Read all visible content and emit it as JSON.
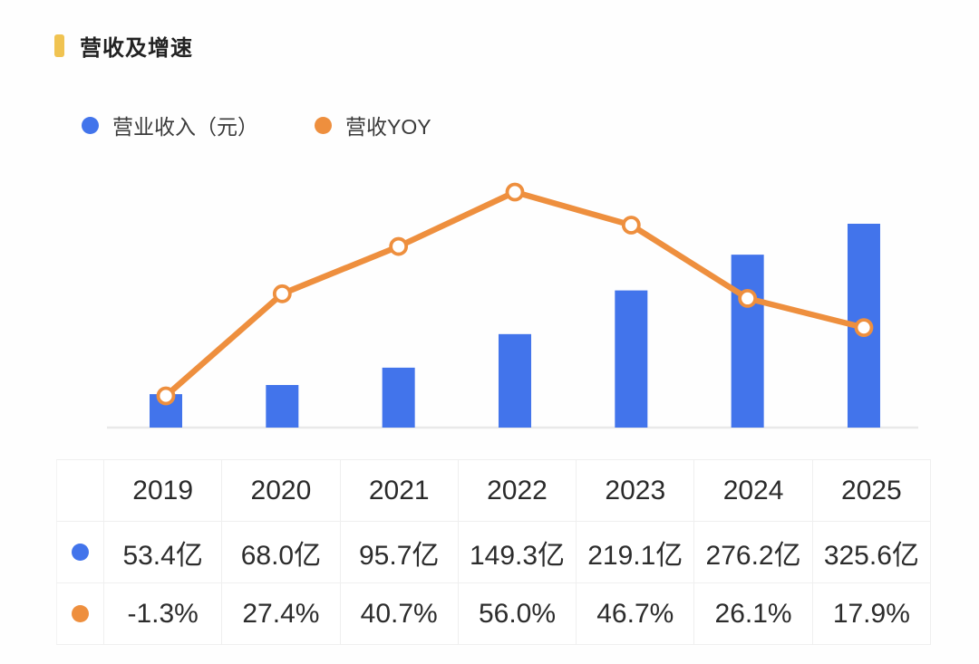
{
  "header": {
    "title": "营收及增速"
  },
  "legend": {
    "revenue_label": "营业收入（元）",
    "yoy_label": "营收YOY"
  },
  "chart_data": {
    "type": "combo",
    "categories": [
      "2019",
      "2020",
      "2021",
      "2022",
      "2023",
      "2024",
      "2025"
    ],
    "series": [
      {
        "name": "营业收入（元）",
        "type": "bar",
        "unit": "亿",
        "color": "#4274EB",
        "values": [
          53.4,
          68.0,
          95.7,
          149.3,
          219.1,
          276.2,
          325.6
        ]
      },
      {
        "name": "营收YOY",
        "type": "line",
        "unit": "%",
        "color": "#EE8F3E",
        "values": [
          -1.3,
          27.4,
          40.7,
          56.0,
          46.7,
          26.1,
          17.9
        ]
      }
    ],
    "title": "营收及增速",
    "xlabel": "",
    "ylabel": "",
    "legend_position": "top-left",
    "grid": false,
    "axes_visible": false,
    "bar_axis_range": [
      0,
      325.6
    ],
    "line_axis_range": [
      -1.3,
      56.0
    ]
  },
  "table": {
    "years": [
      "2019",
      "2020",
      "2021",
      "2022",
      "2023",
      "2024",
      "2025"
    ],
    "revenue_row": {
      "legend": "营业收入（元）",
      "values": [
        "53.4亿",
        "68.0亿",
        "95.7亿",
        "149.3亿",
        "219.1亿",
        "276.2亿",
        "325.6亿"
      ]
    },
    "yoy_row": {
      "legend": "营收YOY",
      "values": [
        "-1.3%",
        "27.4%",
        "40.7%",
        "56.0%",
        "46.7%",
        "26.1%",
        "17.9%"
      ]
    }
  },
  "colors": {
    "bar_blue": "#4274EB",
    "line_orange": "#EE8F3E",
    "title_accent": "#F0C351",
    "axis_gray": "#e9e9e9"
  }
}
